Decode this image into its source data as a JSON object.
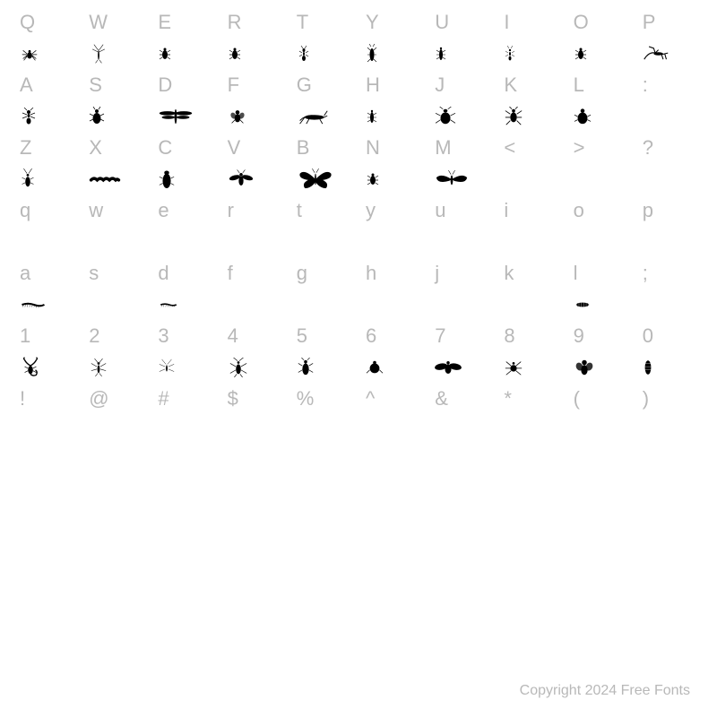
{
  "background_color": "#ffffff",
  "label_color": "#b8b8b8",
  "glyph_color": "#000000",
  "label_fontsize": 22,
  "glyph_fontsize": 18,
  "copyright": "Copyright 2024 Free Fonts",
  "rows": [
    {
      "type": "label",
      "cells": [
        "Q",
        "W",
        "E",
        "R",
        "T",
        "Y",
        "U",
        "I",
        "O",
        "P"
      ]
    },
    {
      "type": "glyph",
      "cells": [
        "spider",
        "mosquito-wing",
        "beetle-small",
        "beetle-small",
        "ant-thin",
        "beetle-long",
        "beetle-thin",
        "ant-tiny",
        "beetle-small",
        "mantis"
      ]
    },
    {
      "type": "label",
      "cells": [
        "A",
        "S",
        "D",
        "F",
        "G",
        "H",
        "J",
        "K",
        "L",
        ":"
      ]
    },
    {
      "type": "glyph",
      "cells": [
        "ant",
        "beetle-oval",
        "dragonfly",
        "fly",
        "grasshopper",
        "beetle-thin",
        "beetle-wide",
        "beetle-legs",
        "ladybug",
        ""
      ]
    },
    {
      "type": "label",
      "cells": [
        "Z",
        "X",
        "C",
        "V",
        "B",
        "N",
        "M",
        "<",
        ">",
        "?"
      ]
    },
    {
      "type": "glyph",
      "cells": [
        "beetle-antenna",
        "caterpillar",
        "cicada",
        "wasp",
        "butterfly",
        "beetle-small",
        "moth",
        "",
        "",
        ""
      ]
    },
    {
      "type": "label",
      "cells": [
        "q",
        "w",
        "e",
        "r",
        "t",
        "y",
        "u",
        "i",
        "o",
        "p"
      ]
    },
    {
      "type": "glyph",
      "cells": [
        "",
        "",
        "",
        "",
        "",
        "",
        "",
        "",
        "",
        ""
      ]
    },
    {
      "type": "label",
      "cells": [
        "a",
        "s",
        "d",
        "f",
        "g",
        "h",
        "j",
        "k",
        "l",
        ";"
      ]
    },
    {
      "type": "glyph",
      "cells": [
        "centipede",
        "",
        "centipede-small",
        "",
        "",
        "",
        "",
        "",
        "larva",
        ""
      ]
    },
    {
      "type": "label",
      "cells": [
        "1",
        "2",
        "3",
        "4",
        "5",
        "6",
        "7",
        "8",
        "9",
        "0"
      ]
    },
    {
      "type": "glyph",
      "cells": [
        "scorpion",
        "mosquito",
        "mosquito-thin",
        "cricket",
        "roach",
        "flea",
        "bee",
        "spider-round",
        "fly-big",
        "pupa"
      ]
    },
    {
      "type": "label",
      "cells": [
        "!",
        "@",
        "#",
        "$",
        "%",
        "^",
        "&",
        "*",
        "(",
        ")"
      ]
    },
    {
      "type": "glyph",
      "cells": [
        "",
        "",
        "",
        "",
        "",
        "",
        "",
        "",
        "",
        ""
      ]
    }
  ],
  "glyph_svgs": {
    "spider": "<svg width='22' height='22' viewBox='0 0 24 24'><ellipse cx='12' cy='14' rx='3' ry='4' fill='#000'/><circle cx='12' cy='9' r='1.5' fill='#000'/><path d='M9 12 L4 8 M9 13 L3 13 M9 14 L4 18 M9 15 L5 20 M15 12 L20 8 M15 13 L21 13 M15 14 L20 18 M15 15 L19 20' stroke='#000' stroke-width='0.8' fill='none'/></svg>",
    "mosquito-wing": "<svg width='22' height='24' viewBox='0 0 24 28'><ellipse cx='12' cy='16' rx='1' ry='6' fill='#000'/><path d='M12 10 L6 2 M12 10 L18 2 M12 12 L4 8 M12 12 L20 8' stroke='#000' stroke-width='0.6' fill='none'/><path d='M11 22 L8 26 M13 22 L16 26' stroke='#000' stroke-width='0.6'/></svg>",
    "beetle-small": "<svg width='16' height='20' viewBox='0 0 16 20'><ellipse cx='8' cy='11' rx='3' ry='5' fill='#000'/><circle cx='8' cy='5' r='1.5' fill='#000'/><path d='M5 8 L2 6 M5 11 L2 11 M5 14 L2 16 M11 8 L14 6 M11 11 L14 11 M11 14 L14 16' stroke='#000' stroke-width='0.7'/></svg>",
    "ant-thin": "<svg width='16' height='20' viewBox='0 0 16 20'><ellipse cx='8' cy='6' rx='1.5' ry='2' fill='#000'/><ellipse cx='8' cy='10' rx='1' ry='2' fill='#000'/><ellipse cx='8' cy='15' rx='2' ry='3' fill='#000'/><path d='M7 4 L5 1 M9 4 L11 1 M6 9 L3 7 M6 11 L3 13 M10 9 L13 7 M10 11 L13 13' stroke='#000' stroke-width='0.6'/></svg>",
    "beetle-long": "<svg width='14' height='22' viewBox='0 0 14 22'><ellipse cx='7' cy='12' rx='2.5' ry='7' fill='#000'/><path d='M5 7 L2 4 M5 12 L2 12 M5 17 L2 20 M9 7 L12 4 M9 12 L12 12 M9 17 L12 20 M6 3 L4 0 M8 3 L10 0' stroke='#000' stroke-width='0.6'/></svg>",
    "beetle-thin": "<svg width='14' height='20' viewBox='0 0 14 20'><ellipse cx='7' cy='11' rx='2' ry='6' fill='#000'/><circle cx='7' cy='4' r='1.2' fill='#000'/><path d='M5 8 L2 6 M5 11 L2 11 M5 14 L2 16 M9 8 L12 6 M9 11 L12 11 M9 14 L12 16' stroke='#000' stroke-width='0.6'/></svg>",
    "ant-tiny": "<svg width='14' height='18' viewBox='0 0 14 18'><circle cx='7' cy='5' r='1.2' fill='#000'/><ellipse cx='7' cy='9' rx='1' ry='2' fill='#000'/><ellipse cx='7' cy='14' rx='1.5' ry='2.5' fill='#000'/><path d='M6 3 L4 0 M8 3 L10 0 M5 8 L2 6 M5 10 L2 12 M9 8 L12 6 M9 10 L12 12' stroke='#000' stroke-width='0.5'/></svg>",
    "mantis": "<svg width='30' height='20' viewBox='0 0 34 22'><path d='M2 18 Q8 8 16 10 L24 12 L32 10 M16 10 L14 4 L8 2 M16 10 L20 6 M24 12 L26 18 M28 11 L30 18' stroke='#000' stroke-width='1.2' fill='none'/><ellipse cx='20' cy='11' rx='6' ry='2' fill='#000'/></svg>",
    "ant": "<svg width='20' height='20' viewBox='0 0 20 20'><circle cx='10' cy='5' r='2' fill='#000'/><ellipse cx='10' cy='9' rx='1.5' ry='2' fill='#000'/><ellipse cx='10' cy='15' rx='2.5' ry='3.5' fill='#000'/><path d='M8 3 L5 0 M12 3 L15 0 M8 8 L3 6 M8 10 L3 12 M12 8 L17 6 M12 10 L17 12' stroke='#000' stroke-width='0.7'/></svg>",
    "beetle-oval": "<svg width='18' height='22' viewBox='0 0 18 22'><ellipse cx='9' cy='13' rx='4.5' ry='6' fill='#000'/><ellipse cx='9' cy='5' rx='2' ry='2' fill='#000'/><path d='M7 3 L5 0 M11 3 L13 0 M5 10 L1 8 M5 14 L1 16 M13 10 L17 8 M13 14 L17 16' stroke='#000' stroke-width='0.7'/></svg>",
    "dragonfly": "<svg width='40' height='22' viewBox='0 0 44 24'><ellipse cx='22' cy='12' rx='1.5' ry='9' fill='#000'/><ellipse cx='12' cy='8' rx='10' ry='2.5' fill='#000'/><ellipse cx='32' cy='8' rx='10' ry='2.5' fill='#000'/><ellipse cx='13' cy='13' rx='8' ry='2' fill='#000'/><ellipse cx='31' cy='13' rx='8' ry='2' fill='#000'/></svg>",
    "fly": "<svg width='22' height='22' viewBox='0 0 24 24'><ellipse cx='12' cy='14' rx='3.5' ry='5' fill='#000'/><circle cx='12' cy='7' r='2.5' fill='#000'/><ellipse cx='7' cy='11' rx='3' ry='4' fill='#000' opacity='0.7' transform='rotate(-30 7 11)'/><ellipse cx='17' cy='11' rx='3' ry='4' fill='#000' opacity='0.7' transform='rotate(30 17 11)'/><path d='M9 16 L5 20 M15 16 L19 20' stroke='#000' stroke-width='0.8'/></svg>",
    "grasshopper": "<svg width='36' height='20' viewBox='0 0 40 22'><path d='M4 16 Q12 8 22 10 L34 12 L38 10' stroke='#000' stroke-width='1' fill='none'/><ellipse cx='22' cy='12' rx='12' ry='3' fill='#000'/><path d='M10 12 L4 20 M16 13 L12 20 M28 13 L32 20 M34 10 L38 4' stroke='#000' stroke-width='1'/></svg>",
    "beetle-wide": "<svg width='24' height='22' viewBox='0 0 26 24'><ellipse cx='13' cy='14' rx='6' ry='7' fill='#000'/><ellipse cx='13' cy='5' rx='2.5' ry='2' fill='#000'/><path d='M10 3 L6 0 M16 3 L20 0 M7 11 L1 8 M7 16 L1 20 M19 11 L25 8 M19 16 L25 20' stroke='#000' stroke-width='0.8'/></svg>",
    "beetle-legs": "<svg width='22' height='22' viewBox='0 0 24 24'><ellipse cx='12' cy='13' rx='4' ry='6' fill='#000'/><circle cx='12' cy='5' r='2' fill='#000'/><path d='M10 3 L7 0 M14 3 L17 0 M8 9 L2 5 M8 13 L2 13 M8 17 L3 22 M16 9 L22 5 M16 13 L22 13 M16 17 L21 22' stroke='#000' stroke-width='0.9'/></svg>",
    "ladybug": "<svg width='20' height='22' viewBox='0 0 22 24'><ellipse cx='11' cy='14' rx='6' ry='7' fill='#000'/><circle cx='11' cy='5' r='2.5' fill='#000'/><path d='M5 12 L1 10 M5 16 L1 18 M17 12 L21 10 M17 16 L21 18' stroke='#000' stroke-width='0.8'/></svg>",
    "beetle-antenna": "<svg width='18' height='24' viewBox='0 0 18 26'><ellipse cx='9' cy='16' rx='3' ry='6' fill='#000'/><circle cx='9' cy='8' r='1.5' fill='#000'/><path d='M8 6 L4 0 M10 6 L14 0 M6 13 L2 11 M6 17 L2 19 M12 13 L16 11 M12 17 L16 19' stroke='#000' stroke-width='0.6'/></svg>",
    "caterpillar": "<svg width='36' height='12' viewBox='0 0 40 14'><path d='M2 8 Q6 4 10 8 Q14 4 18 8 Q22 4 26 8 Q30 4 34 8 Q36 6 38 8' stroke='#000' stroke-width='4' fill='none' stroke-linecap='round'/></svg>",
    "cicada": "<svg width='20' height='24' viewBox='0 0 22 26'><ellipse cx='11' cy='15' rx='5' ry='9' fill='#000'/><ellipse cx='11' cy='5' rx='3' ry='2.5' fill='#000'/><path d='M6 12 L2 10 M6 18 L2 20 M16 12 L20 10 M16 18 L20 20' stroke='#000' stroke-width='0.7'/></svg>",
    "wasp": "<svg width='30' height='22' viewBox='0 0 34 24'><ellipse cx='17' cy='14' rx='3' ry='6' fill='#000'/><circle cx='17' cy='6' r='2' fill='#000'/><ellipse cx='9' cy='10' rx='7' ry='3' fill='#000' transform='rotate(-15 9 10)'/><ellipse cx='25' cy='10' rx='7' ry='3' fill='#000' transform='rotate(15 25 10)'/><path d='M15 4 L12 0 M19 4 L22 0' stroke='#000' stroke-width='0.6'/></svg>",
    "butterfly": "<svg width='42' height='28' viewBox='0 0 46 30'><path d='M23 15 Q10 2 4 8 Q2 14 14 16 Q6 20 10 26 Q18 26 23 18 Q28 26 36 26 Q40 20 32 16 Q44 14 42 8 Q36 2 23 15 Z' fill='#000'/><ellipse cx='23' cy='15' rx='1' ry='7' fill='#000'/><path d='M22 7 L19 2 M24 7 L27 2' stroke='#000' stroke-width='0.6'/></svg>",
    "moth": "<svg width='38' height='22' viewBox='0 0 42 24'><path d='M21 12 Q8 4 2 10 Q4 18 18 14 M21 12 Q34 4 40 10 Q38 18 24 14' fill='#000'/><ellipse cx='21' cy='13' rx='1.5' ry='6' fill='#000'/><path d='M20 6 L17 1 M22 6 L25 1' stroke='#000' stroke-width='0.6'/></svg>",
    "centipede": "<svg width='30' height='10' viewBox='0 0 34 12'><path d='M2 6 Q10 3 18 6 Q26 9 32 6' stroke='#000' stroke-width='2.5' fill='none'/><path d='M4 6 L3 9 M7 5 L6 9 M10 5 L9 9 M13 6 L12 9 M16 6 L15 9 M19 6 L18 9 M22 7 L21 10 M25 7 L24 10 M28 6 L27 9' stroke='#000' stroke-width='0.5'/></svg>",
    "centipede-small": "<svg width='24' height='8' viewBox='0 0 26 10'><path d='M2 5 Q8 3 14 5 Q20 7 24 5' stroke='#000' stroke-width='2' fill='none'/><path d='M4 5 L3 8 M7 4 L6 8 M10 4 L9 8 M13 5 L12 8 M16 5 L15 8 M19 6 L18 8 M22 5 L21 8' stroke='#000' stroke-width='0.4'/></svg>",
    "larva": "<svg width='20' height='8' viewBox='0 0 22 10'><ellipse cx='11' cy='5' rx='9' ry='3' fill='#000'/><path d='M3 3 L3 7 M6 2 L6 8 M9 2 L9 8 M13 2 L13 8 M16 2 L16 8 M19 3 L19 7' stroke='#fff' stroke-width='0.4'/></svg>",
    "scorpion": "<svg width='24' height='24' viewBox='0 0 26 26'><ellipse cx='13' cy='16' rx='3' ry='5' fill='#000'/><path d='M13 11 Q8 8 6 4 Q4 2 6 1 M13 11 Q18 8 20 4 Q22 2 20 1' stroke='#000' stroke-width='1.5' fill='none'/><path d='M13 21 Q16 24 20 22 Q22 18 19 16' stroke='#000' stroke-width='1.5' fill='none'/><path d='M10 14 L6 12 M10 17 L6 19 M16 14 L20 12 M16 17 L20 19' stroke='#000' stroke-width='0.7'/></svg>",
    "mosquito": "<svg width='22' height='20' viewBox='0 0 24 22'><ellipse cx='12' cy='13' rx='1.5' ry='5' fill='#000'/><circle cx='12' cy='6' r='1.5' fill='#000'/><path d='M11 5 L7 0 M13 5 L17 0 M10 10 L3 6 M10 13 L3 15 M14 10 L21 6 M14 13 L21 15 M11 18 L8 22 M13 18 L16 22' stroke='#000' stroke-width='0.6'/></svg>",
    "mosquito-thin": "<svg width='20' height='20' viewBox='0 0 22 22'><ellipse cx='11' cy='12' rx='1' ry='4' fill='#000'/><path d='M10 7 L5 1 M12 7 L17 1 M9 10 L2 7 M9 13 L2 16 M13 10 L20 7 M13 13 L20 16' stroke='#000' stroke-width='0.5'/></svg>",
    "cricket": "<svg width='24' height='22' viewBox='0 0 26 24'><ellipse cx='13' cy='14' rx='3' ry='6' fill='#000'/><circle cx='13' cy='6' r='1.5' fill='#000'/><path d='M12 4 L7 0 M14 4 L19 0 M10 11 L3 7 M10 15 L3 19 M16 11 L23 7 M16 15 L23 19 M11 20 L8 24 M15 20 L18 24' stroke='#000' stroke-width='0.7'/></svg>",
    "roach": "<svg width='20' height='22' viewBox='0 0 22 24'><ellipse cx='11' cy='14' rx='4' ry='7' fill='#000'/><ellipse cx='11' cy='5' rx='2' ry='2' fill='#000'/><path d='M9 3 L6 0 M13 3 L16 0 M7 10 L2 7 M7 15 L2 18 M15 10 L20 7 M15 15 L20 18' stroke='#000' stroke-width='0.7'/></svg>",
    "flea": "<svg width='20' height='18' viewBox='0 0 22 20'><ellipse cx='11' cy='11' rx='6' ry='6' fill='#000'/><circle cx='11' cy='4' r='2' fill='#000'/><path d='M5 13 L1 17 M17 13 L21 17' stroke='#000' stroke-width='0.8'/></svg>",
    "bee": "<svg width='30' height='20' viewBox='0 0 34 22'><ellipse cx='17' cy='13' rx='4' ry='6' fill='#000'/><circle cx='17' cy='5' r='2' fill='#000'/><ellipse cx='8' cy='10' rx='8' ry='4' fill='#000' transform='rotate(-10 8 10)'/><ellipse cx='26' cy='10' rx='8' ry='4' fill='#000' transform='rotate(10 26 10)'/></svg>",
    "spider-round": "<svg width='22' height='22' viewBox='0 0 24 24'><circle cx='12' cy='13' r='4' fill='#000'/><circle cx='12' cy='7' r='1.5' fill='#000'/><path d='M9 10 L3 5 M8 13 L2 13 M9 16 L3 21 M15 10 L21 5 M16 13 L22 13 M15 16 L21 21' stroke='#000' stroke-width='0.8'/></svg>",
    "fly-big": "<svg width='24' height='22' viewBox='0 0 26 24'><ellipse cx='13' cy='15' rx='4' ry='6' fill='#000'/><circle cx='13' cy='6' r='3' fill='#000'/><ellipse cx='7' cy='11' rx='4' ry='5' fill='#000' opacity='0.8' transform='rotate(-25 7 11)'/><ellipse cx='19' cy='11' rx='4' ry='5' fill='#000' opacity='0.8' transform='rotate(25 19 11)'/></svg>",
    "pupa": "<svg width='12' height='20' viewBox='0 0 14 22'><ellipse cx='7' cy='11' rx='4' ry='9' fill='#000'/><path d='M3 6 L11 6 M3 10 L11 10 M3 14 L11 14' stroke='#fff' stroke-width='0.4'/></svg>"
  }
}
